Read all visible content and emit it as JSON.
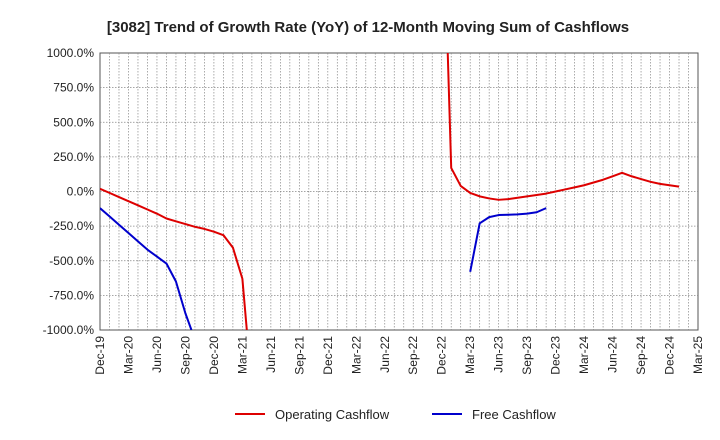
{
  "chart_data": {
    "type": "line",
    "title": "[3082]  Trend of Growth Rate (YoY) of 12-Month Moving Sum of Cashflows",
    "xlabel": "",
    "ylabel": "",
    "x_range": [
      "2019-12",
      "2025-03"
    ],
    "ylim": [
      -1000,
      1000
    ],
    "y_ticks": [
      1000,
      750,
      500,
      250,
      0,
      -250,
      -500,
      -750,
      -1000
    ],
    "y_tick_labels": [
      "1000.0%",
      "750.0%",
      "500.0%",
      "250.0%",
      "0.0%",
      "-250.0%",
      "-500.0%",
      "-750.0%",
      "-1000.0%"
    ],
    "x_ticks": [
      "2019-12",
      "2020-03",
      "2020-06",
      "2020-09",
      "2020-12",
      "2021-03",
      "2021-06",
      "2021-09",
      "2021-12",
      "2022-03",
      "2022-06",
      "2022-09",
      "2022-12",
      "2023-03",
      "2023-06",
      "2023-09",
      "2023-12",
      "2024-03",
      "2024-06",
      "2024-09",
      "2024-12",
      "2025-03"
    ],
    "x_tick_labels": [
      "Dec-19",
      "Mar-20",
      "Jun-20",
      "Sep-20",
      "Dec-20",
      "Mar-21",
      "Jun-21",
      "Sep-21",
      "Dec-21",
      "Mar-22",
      "Jun-22",
      "Sep-22",
      "Dec-22",
      "Mar-23",
      "Jun-23",
      "Sep-23",
      "Dec-23",
      "Mar-24",
      "Jun-24",
      "Sep-24",
      "Dec-24",
      "Mar-25"
    ],
    "grid": true,
    "legend_position": "bottom-center",
    "series": [
      {
        "name": "Operating Cashflow",
        "color": "#dd0000",
        "points": [
          [
            "2019-12",
            20
          ],
          [
            "2020-01",
            -10
          ],
          [
            "2020-02",
            -40
          ],
          [
            "2020-03",
            -70
          ],
          [
            "2020-04",
            -100
          ],
          [
            "2020-05",
            -130
          ],
          [
            "2020-06",
            -160
          ],
          [
            "2020-07",
            -195
          ],
          [
            "2020-08",
            -215
          ],
          [
            "2020-09",
            -235
          ],
          [
            "2020-10",
            -255
          ],
          [
            "2020-11",
            -270
          ],
          [
            "2020-12",
            -290
          ],
          [
            "2021-01",
            -315
          ],
          [
            "2021-02",
            -405
          ],
          [
            "2021-03",
            -630
          ],
          [
            "2021-03-15",
            -1000
          ]
        ],
        "points_2": [
          [
            "2022-12-20",
            1000
          ],
          [
            "2023-01",
            170
          ],
          [
            "2023-02",
            40
          ],
          [
            "2023-03",
            -10
          ],
          [
            "2023-04",
            -35
          ],
          [
            "2023-05",
            -50
          ],
          [
            "2023-06",
            -60
          ],
          [
            "2023-07",
            -55
          ],
          [
            "2023-08",
            -45
          ],
          [
            "2023-09",
            -35
          ],
          [
            "2023-10",
            -25
          ],
          [
            "2023-11",
            -15
          ],
          [
            "2023-12",
            0
          ],
          [
            "2024-01",
            15
          ],
          [
            "2024-02",
            30
          ],
          [
            "2024-03",
            45
          ],
          [
            "2024-04",
            65
          ],
          [
            "2024-05",
            85
          ],
          [
            "2024-06",
            110
          ],
          [
            "2024-07",
            135
          ],
          [
            "2024-08",
            110
          ],
          [
            "2024-09",
            90
          ],
          [
            "2024-10",
            70
          ],
          [
            "2024-11",
            55
          ],
          [
            "2024-12",
            45
          ],
          [
            "2025-01",
            35
          ]
        ]
      },
      {
        "name": "Free Cashflow",
        "color": "#0000cc",
        "points": [
          [
            "2019-12",
            -120
          ],
          [
            "2020-01",
            -180
          ],
          [
            "2020-02",
            -240
          ],
          [
            "2020-03",
            -300
          ],
          [
            "2020-04",
            -360
          ],
          [
            "2020-05",
            -420
          ],
          [
            "2020-06",
            -470
          ],
          [
            "2020-07",
            -520
          ],
          [
            "2020-08",
            -650
          ],
          [
            "2020-09",
            -880
          ],
          [
            "2020-09-20",
            -1000
          ]
        ],
        "points_2": [
          [
            "2023-03",
            -580
          ],
          [
            "2023-04",
            -230
          ],
          [
            "2023-05",
            -185
          ],
          [
            "2023-06",
            -170
          ],
          [
            "2023-07",
            -168
          ],
          [
            "2023-08",
            -165
          ],
          [
            "2023-09",
            -160
          ],
          [
            "2023-10",
            -150
          ],
          [
            "2023-11",
            -120
          ]
        ]
      }
    ]
  }
}
